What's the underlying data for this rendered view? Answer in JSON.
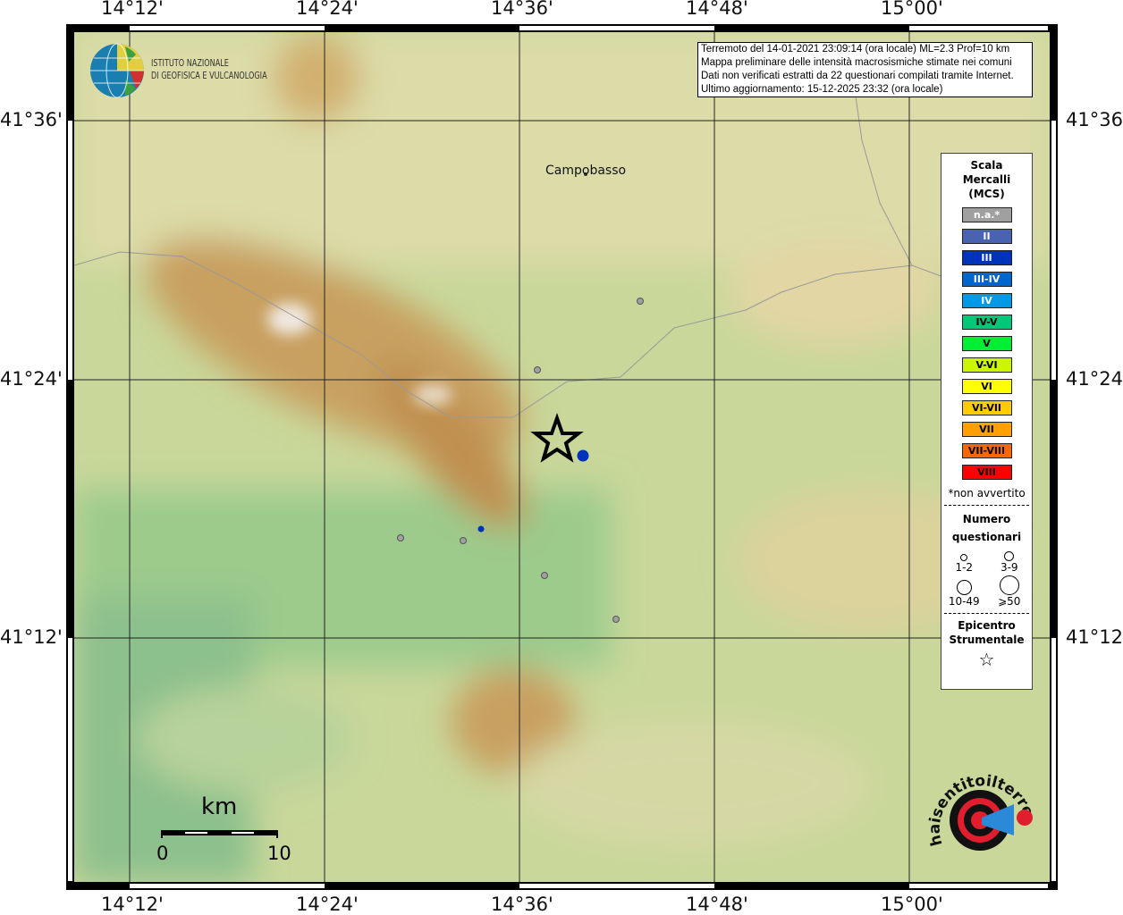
{
  "axes": {
    "lon_ticks": [
      "14°12'",
      "14°24'",
      "14°36'",
      "14°48'",
      "15°00'"
    ],
    "lat_ticks": [
      "41°36'",
      "41°24'",
      "41°12'"
    ]
  },
  "info_box": {
    "line1": "Terremoto del 14-01-2021 23:09:14 (ora locale) ML=2.3 Prof=10 km",
    "line2": "Mappa preliminare delle intensità macrosismiche stimate nei comuni",
    "line3": "Dati non verificati estratti da 22 questionari compilati tramite Internet.",
    "line4": "Ultimo aggiornamento: 15-12-2025 23:32 (ora locale)"
  },
  "logo_ingv": {
    "line1": "ISTITUTO NAZIONALE",
    "line2": "DI GEOFISICA E VULCANOLOGIA"
  },
  "logo_hsit": "www.haisentitoilterremoto.it",
  "places": [
    {
      "name": "Campobasso"
    }
  ],
  "legend": {
    "title": [
      "Scala",
      "Mercalli",
      "(MCS)"
    ],
    "classes": [
      {
        "label": "n.a.*",
        "color": "#a0a0a0",
        "text": "#ffffff"
      },
      {
        "label": "II",
        "color": "#4a63b0",
        "text": "#ffffff"
      },
      {
        "label": "III",
        "color": "#0033bb",
        "text": "#ffffff"
      },
      {
        "label": "III-IV",
        "color": "#0066cc",
        "text": "#ffffff"
      },
      {
        "label": "IV",
        "color": "#0099e6",
        "text": "#ffffff"
      },
      {
        "label": "IV-V",
        "color": "#00c878",
        "text": "#000000"
      },
      {
        "label": "V",
        "color": "#00ee33",
        "text": "#000000"
      },
      {
        "label": "V-VI",
        "color": "#ccf500",
        "text": "#000000"
      },
      {
        "label": "VI",
        "color": "#ffff00",
        "text": "#000000"
      },
      {
        "label": "VI-VII",
        "color": "#ffcc00",
        "text": "#000000"
      },
      {
        "label": "VII",
        "color": "#ffa000",
        "text": "#000000"
      },
      {
        "label": "VII-VIII",
        "color": "#ff6600",
        "text": "#000000"
      },
      {
        "label": "VIII",
        "color": "#ff0000",
        "text": "#000000"
      }
    ],
    "note": "*non avvertito",
    "count_title": [
      "Numero",
      "questionari"
    ],
    "count_classes": [
      "1-2",
      "3-9",
      "10-49",
      "⩾50"
    ],
    "epicenter_title": [
      "Epicentro",
      "Strumentale"
    ]
  },
  "scale_bar": {
    "unit": "km",
    "start": "0",
    "end": "10"
  },
  "observations": [
    {
      "intensity": "n.a.*",
      "count_class": "1-2"
    },
    {
      "intensity": "n.a.*",
      "count_class": "1-2"
    },
    {
      "intensity": "III",
      "count_class": "3-9"
    },
    {
      "intensity": "n.a.*",
      "count_class": "1-2"
    },
    {
      "intensity": "n.a.*",
      "count_class": "1-2"
    },
    {
      "intensity": "III",
      "count_class": "1-2"
    },
    {
      "intensity": "n.a.*",
      "count_class": "1-2"
    },
    {
      "intensity": "n.a.*",
      "count_class": "1-2"
    }
  ]
}
